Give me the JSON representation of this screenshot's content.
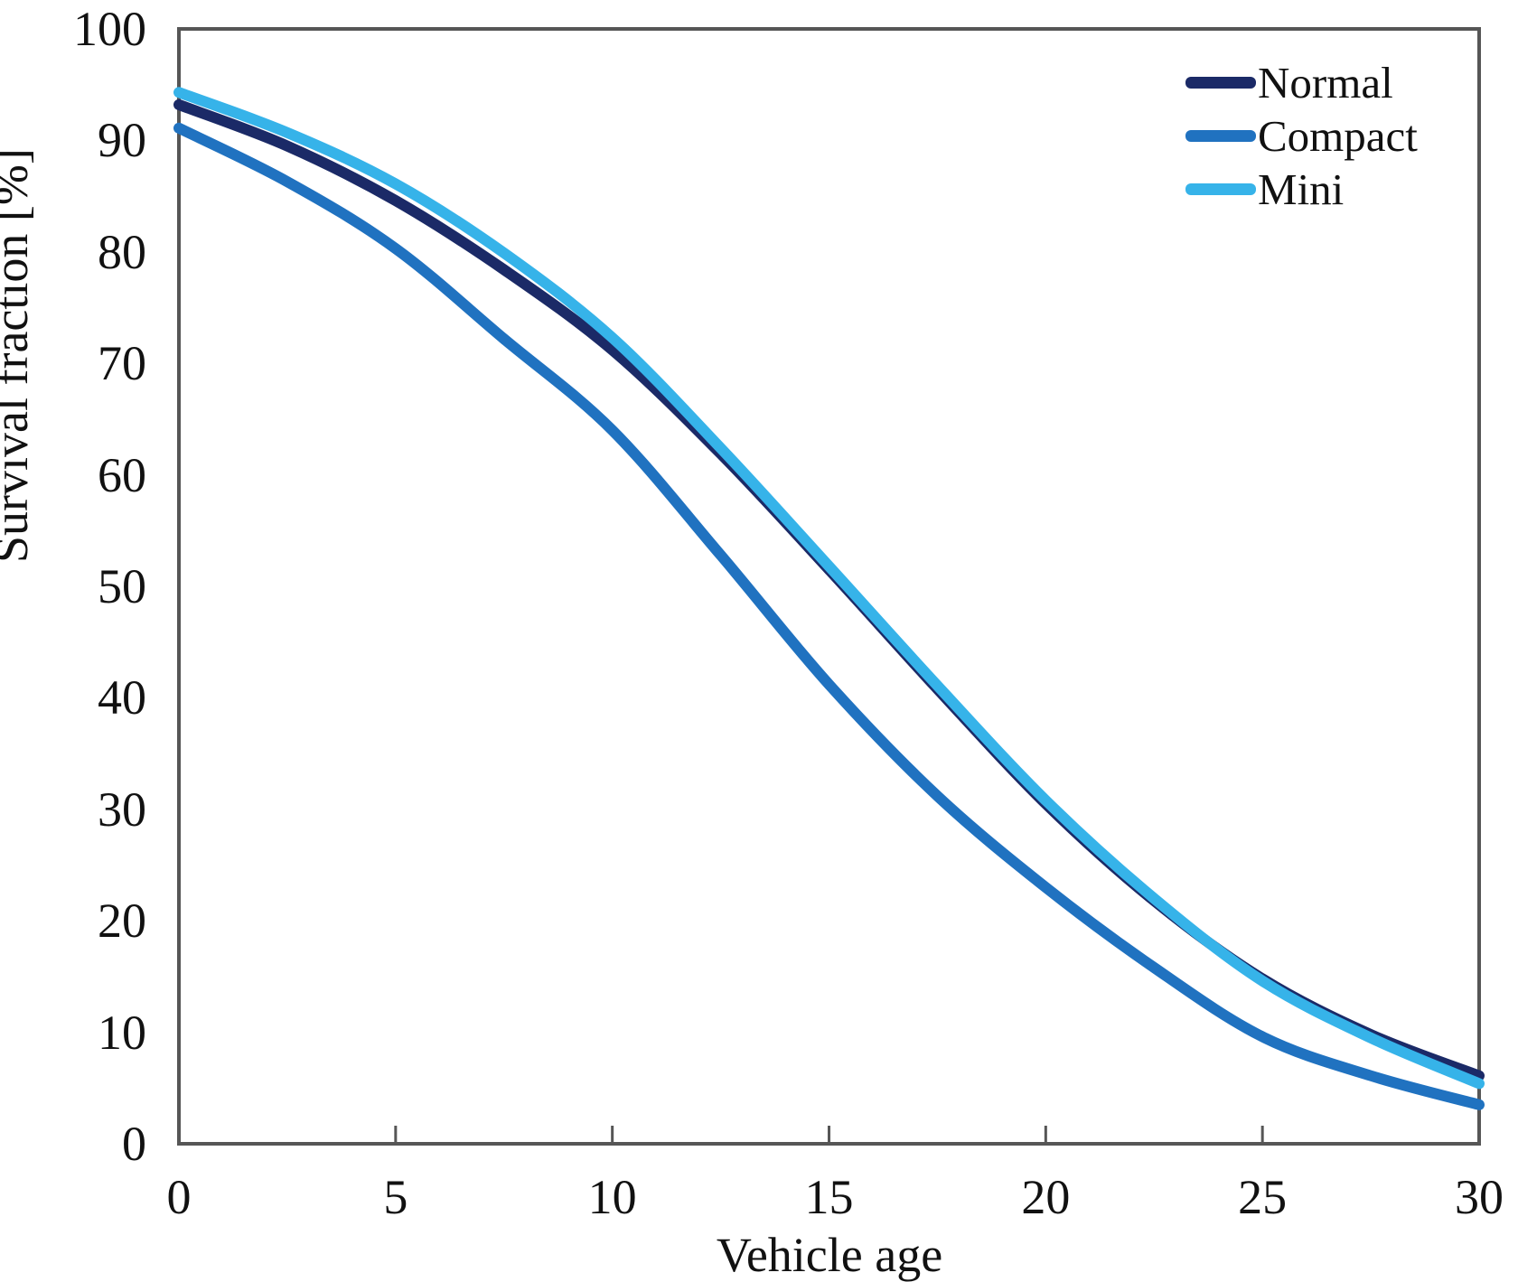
{
  "chart_data": {
    "type": "line",
    "title": "",
    "xlabel": "Vehicle age",
    "ylabel": "Survival fraction [%]",
    "xlim": [
      0,
      30
    ],
    "ylim": [
      0,
      100
    ],
    "x_ticks": [
      0,
      5,
      10,
      15,
      20,
      25,
      30
    ],
    "y_ticks": [
      0,
      10,
      20,
      30,
      40,
      50,
      60,
      70,
      80,
      90,
      100
    ],
    "grid": false,
    "legend_position": "top-right-inside",
    "x": [
      0,
      2.5,
      5,
      7.5,
      10,
      12.5,
      15,
      17.5,
      20,
      22.5,
      25,
      27.5,
      30
    ],
    "series": [
      {
        "name": "Normal",
        "color": "#1b2a67",
        "values": [
          93.2,
          89.5,
          84.6,
          78.4,
          71.2,
          61.9,
          51.5,
          40.8,
          30.5,
          21.8,
          14.8,
          9.8,
          6.1
        ]
      },
      {
        "name": "Compact",
        "color": "#2072c0",
        "values": [
          91.1,
          86.3,
          80.3,
          72.2,
          64.0,
          52.8,
          41.2,
          31.2,
          23.0,
          15.8,
          9.6,
          6.1,
          3.5
        ]
      },
      {
        "name": "Mini",
        "color": "#36b3e9",
        "values": [
          94.3,
          90.7,
          86.1,
          79.9,
          72.3,
          62.4,
          51.8,
          41.1,
          30.8,
          22.0,
          14.6,
          9.5,
          5.4
        ]
      }
    ]
  },
  "style": {
    "axis_color": "#565656",
    "text_color": "#111111",
    "line_width": 12,
    "draw_order": [
      "Compact",
      "Normal",
      "Mini"
    ]
  }
}
